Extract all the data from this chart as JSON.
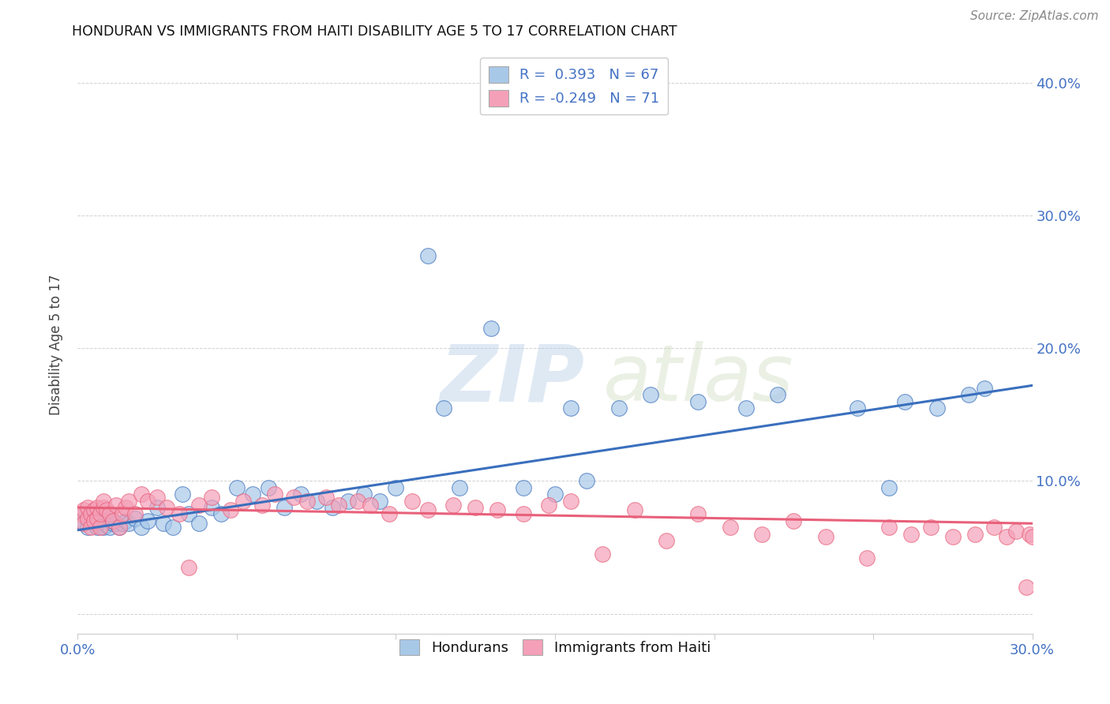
{
  "title": "HONDURAN VS IMMIGRANTS FROM HAITI DISABILITY AGE 5 TO 17 CORRELATION CHART",
  "source": "Source: ZipAtlas.com",
  "ylabel": "Disability Age 5 to 17",
  "xlim": [
    0.0,
    0.3
  ],
  "ylim": [
    -0.015,
    0.42
  ],
  "xticks": [
    0.0,
    0.05,
    0.1,
    0.15,
    0.2,
    0.25,
    0.3
  ],
  "xtick_labels": [
    "0.0%",
    "",
    "",
    "",
    "",
    "",
    "30.0%"
  ],
  "yticks": [
    0.0,
    0.1,
    0.2,
    0.3,
    0.4
  ],
  "ytick_labels": [
    "",
    "10.0%",
    "20.0%",
    "30.0%",
    "40.0%"
  ],
  "blue_R": 0.393,
  "blue_N": 67,
  "pink_R": -0.249,
  "pink_N": 71,
  "blue_color": "#a8c8e8",
  "pink_color": "#f4a0b8",
  "blue_line_color": "#3a6fbd",
  "pink_line_color": "#e8607a",
  "watermark_zip": "ZIP",
  "watermark_atlas": "atlas",
  "legend_label_blue": "Hondurans",
  "legend_label_pink": "Immigrants from Haiti",
  "blue_x": [
    0.001,
    0.002,
    0.002,
    0.003,
    0.003,
    0.004,
    0.004,
    0.005,
    0.005,
    0.006,
    0.006,
    0.007,
    0.007,
    0.008,
    0.008,
    0.009,
    0.009,
    0.01,
    0.01,
    0.011,
    0.011,
    0.012,
    0.013,
    0.014,
    0.015,
    0.016,
    0.018,
    0.02,
    0.022,
    0.025,
    0.027,
    0.03,
    0.033,
    0.035,
    0.038,
    0.042,
    0.045,
    0.05,
    0.055,
    0.06,
    0.065,
    0.07,
    0.075,
    0.08,
    0.085,
    0.09,
    0.095,
    0.1,
    0.11,
    0.115,
    0.12,
    0.13,
    0.14,
    0.15,
    0.155,
    0.16,
    0.17,
    0.18,
    0.195,
    0.21,
    0.22,
    0.245,
    0.255,
    0.26,
    0.27,
    0.28,
    0.285
  ],
  "blue_y": [
    0.07,
    0.068,
    0.075,
    0.065,
    0.072,
    0.07,
    0.074,
    0.068,
    0.073,
    0.065,
    0.069,
    0.07,
    0.072,
    0.068,
    0.065,
    0.07,
    0.067,
    0.065,
    0.072,
    0.068,
    0.07,
    0.068,
    0.065,
    0.068,
    0.07,
    0.068,
    0.072,
    0.065,
    0.07,
    0.08,
    0.068,
    0.065,
    0.09,
    0.075,
    0.068,
    0.08,
    0.075,
    0.095,
    0.09,
    0.095,
    0.08,
    0.09,
    0.085,
    0.08,
    0.085,
    0.09,
    0.085,
    0.095,
    0.27,
    0.155,
    0.095,
    0.215,
    0.095,
    0.09,
    0.155,
    0.1,
    0.155,
    0.165,
    0.16,
    0.155,
    0.165,
    0.155,
    0.095,
    0.16,
    0.155,
    0.165,
    0.17
  ],
  "pink_x": [
    0.001,
    0.002,
    0.002,
    0.003,
    0.003,
    0.004,
    0.004,
    0.005,
    0.005,
    0.006,
    0.006,
    0.007,
    0.007,
    0.008,
    0.008,
    0.009,
    0.01,
    0.011,
    0.012,
    0.013,
    0.014,
    0.015,
    0.016,
    0.018,
    0.02,
    0.022,
    0.025,
    0.028,
    0.032,
    0.035,
    0.038,
    0.042,
    0.048,
    0.052,
    0.058,
    0.062,
    0.068,
    0.072,
    0.078,
    0.082,
    0.088,
    0.092,
    0.098,
    0.105,
    0.11,
    0.118,
    0.125,
    0.132,
    0.14,
    0.148,
    0.155,
    0.165,
    0.175,
    0.185,
    0.195,
    0.205,
    0.215,
    0.225,
    0.235,
    0.248,
    0.255,
    0.262,
    0.268,
    0.275,
    0.282,
    0.288,
    0.292,
    0.295,
    0.298,
    0.299,
    0.3
  ],
  "pink_y": [
    0.075,
    0.078,
    0.068,
    0.072,
    0.08,
    0.065,
    0.075,
    0.078,
    0.07,
    0.072,
    0.08,
    0.065,
    0.075,
    0.08,
    0.085,
    0.078,
    0.075,
    0.07,
    0.082,
    0.065,
    0.075,
    0.08,
    0.085,
    0.075,
    0.09,
    0.085,
    0.088,
    0.08,
    0.075,
    0.035,
    0.082,
    0.088,
    0.078,
    0.085,
    0.082,
    0.09,
    0.088,
    0.085,
    0.088,
    0.082,
    0.085,
    0.082,
    0.075,
    0.085,
    0.078,
    0.082,
    0.08,
    0.078,
    0.075,
    0.082,
    0.085,
    0.045,
    0.078,
    0.055,
    0.075,
    0.065,
    0.06,
    0.07,
    0.058,
    0.042,
    0.065,
    0.06,
    0.065,
    0.058,
    0.06,
    0.065,
    0.058,
    0.062,
    0.02,
    0.06,
    0.058
  ]
}
